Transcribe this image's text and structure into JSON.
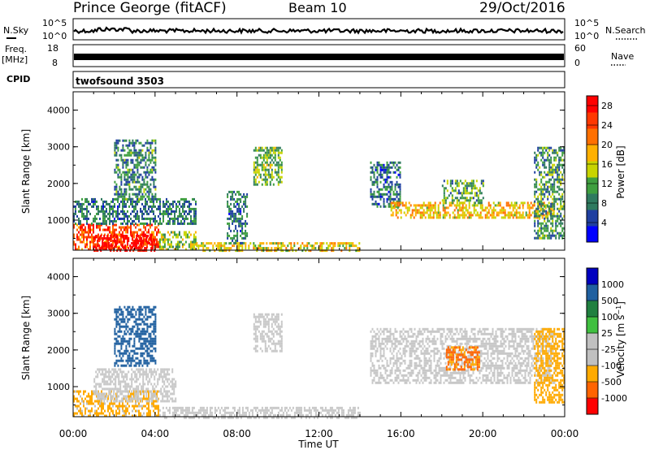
{
  "header": {
    "station": "Prince George (fitACF)",
    "beam": "Beam 10",
    "date": "29/Oct/2016"
  },
  "strips": {
    "nsky_label": "N.Sky",
    "nsky_ticks": [
      "10^5",
      "10^0"
    ],
    "nsearch_label": "N.Search",
    "freq_label": "Freq.",
    "freq_unit": "[MHz]",
    "freq_ticks": [
      "18",
      "8"
    ],
    "nave_label": "Nave",
    "nave_ticks": [
      "60",
      "0"
    ],
    "cpid_label": "CPID",
    "cpid_value": "twofsound 3503"
  },
  "colors": {
    "power_scale": [
      "#0000ff",
      "#1f3fa0",
      "#2f7a5f",
      "#3f9f3f",
      "#c8d400",
      "#ffb000",
      "#ff7000",
      "#ff3800",
      "#ff0000"
    ],
    "velocity_scale": [
      "#ff0000",
      "#ff6400",
      "#ffaa00",
      "#c0c0c0",
      "#c0c0c0",
      "#40c040",
      "#208040",
      "#2060a0",
      "#0000c0"
    ],
    "ground_scatter": "#c8c8c8"
  },
  "chart_data": [
    {
      "type": "heatmap",
      "title": "",
      "xlabel": "",
      "ylabel": "Slant Range [km]",
      "xlim": [
        "00:00",
        "24:00"
      ],
      "ylim": [
        180,
        4500
      ],
      "yticks": [
        "1000",
        "2000",
        "3000",
        "4000"
      ],
      "colorbar_label": "Power [dB]",
      "colorbar_ticks": [
        "4",
        "8",
        "12",
        "16",
        "20",
        "24",
        "28"
      ],
      "colorbar_range": [
        0,
        30
      ],
      "regions": [
        {
          "t0": 0.0,
          "t1": 4.2,
          "r0": 180,
          "r1": 900,
          "value": 24
        },
        {
          "t0": 1.0,
          "t1": 4.0,
          "r0": 180,
          "r1": 600,
          "value": 30
        },
        {
          "t0": 4.2,
          "t1": 6.0,
          "r0": 180,
          "r1": 700,
          "value": 14
        },
        {
          "t0": 6.0,
          "t1": 14.0,
          "r0": 180,
          "r1": 400,
          "value": 16
        },
        {
          "t0": 0.0,
          "t1": 6.0,
          "r0": 900,
          "r1": 1600,
          "value": 8
        },
        {
          "t0": 2.0,
          "t1": 4.0,
          "r0": 1600,
          "r1": 3200,
          "value": 9
        },
        {
          "t0": 7.5,
          "t1": 8.5,
          "r0": 400,
          "r1": 1800,
          "value": 8
        },
        {
          "t0": 8.8,
          "t1": 10.2,
          "r0": 2000,
          "r1": 3000,
          "value": 12
        },
        {
          "t0": 14.5,
          "t1": 16.0,
          "r0": 1400,
          "r1": 2600,
          "value": 8
        },
        {
          "t0": 15.5,
          "t1": 23.5,
          "r0": 1100,
          "r1": 1500,
          "value": 18
        },
        {
          "t0": 18.0,
          "t1": 20.0,
          "r0": 1500,
          "r1": 2100,
          "value": 11
        },
        {
          "t0": 22.5,
          "t1": 24.0,
          "r0": 500,
          "r1": 3000,
          "value": 10
        }
      ]
    },
    {
      "type": "heatmap",
      "title": "",
      "xlabel": "Time UT",
      "ylabel": "Slant Range [km]",
      "xlim": [
        "00:00",
        "24:00"
      ],
      "xticks": [
        "00:00",
        "04:00",
        "08:00",
        "12:00",
        "16:00",
        "20:00",
        "00:00"
      ],
      "ylim": [
        180,
        4500
      ],
      "yticks": [
        "1000",
        "2000",
        "3000",
        "4000"
      ],
      "colorbar_label": "Velocity [m s^-1]",
      "colorbar_ticks": [
        "1000",
        "500",
        "100",
        "25",
        "-25",
        "-100",
        "-500",
        "-1000"
      ],
      "regions": [
        {
          "t0": 0.0,
          "t1": 4.2,
          "r0": 180,
          "r1": 900,
          "value": -150,
          "kind": "velocity"
        },
        {
          "t0": 1.0,
          "t1": 5.0,
          "r0": 600,
          "r1": 1500,
          "value": 0,
          "kind": "ground"
        },
        {
          "t0": 4.2,
          "t1": 14.0,
          "r0": 180,
          "r1": 450,
          "value": 0,
          "kind": "ground"
        },
        {
          "t0": 2.0,
          "t1": 4.0,
          "r0": 1600,
          "r1": 3200,
          "value": 300,
          "kind": "velocity"
        },
        {
          "t0": 8.8,
          "t1": 10.2,
          "r0": 2000,
          "r1": 3000,
          "value": 0,
          "kind": "ground"
        },
        {
          "t0": 14.5,
          "t1": 23.5,
          "r0": 1100,
          "r1": 2600,
          "value": 0,
          "kind": "ground"
        },
        {
          "t0": 18.2,
          "t1": 19.8,
          "r0": 1500,
          "r1": 2100,
          "value": -600,
          "kind": "velocity"
        },
        {
          "t0": 22.5,
          "t1": 24.0,
          "r0": 600,
          "r1": 2600,
          "value": -200,
          "kind": "velocity"
        }
      ]
    }
  ]
}
